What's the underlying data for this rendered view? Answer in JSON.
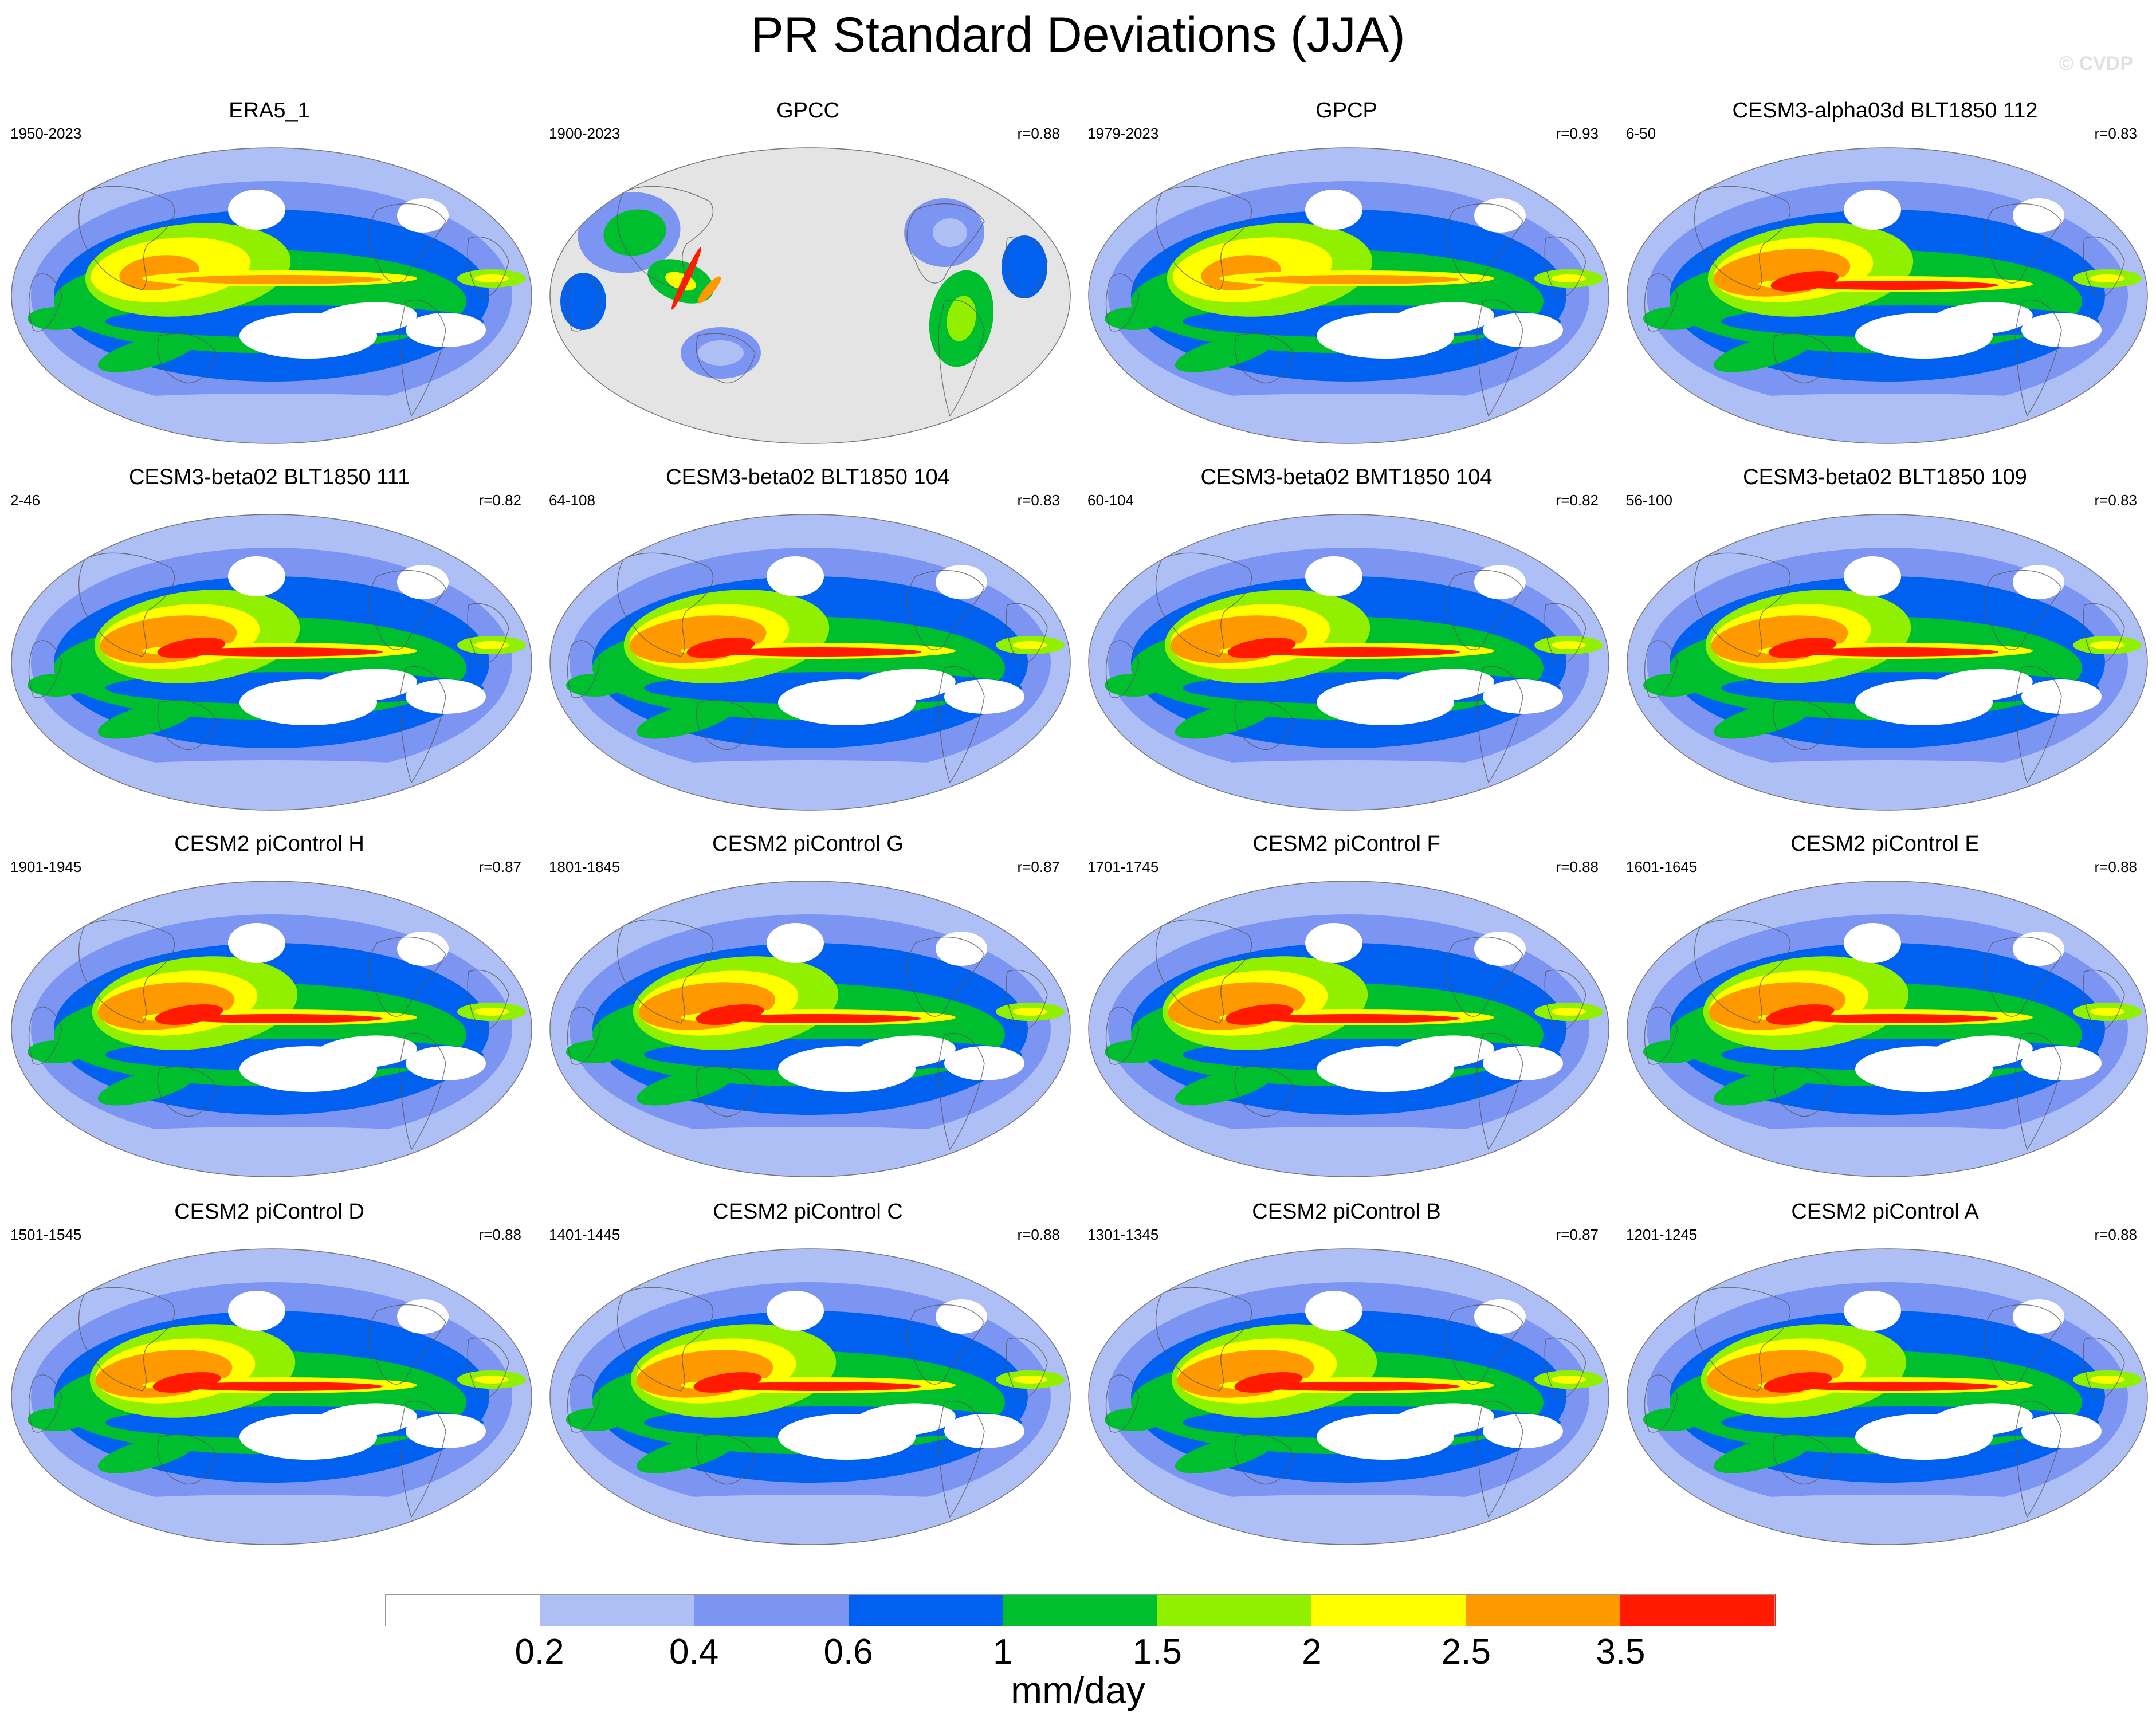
{
  "title": "PR Standard Deviations (JJA)",
  "watermark": "© CVDP",
  "panels": [
    {
      "name": "ERA5_1",
      "years": "1950-2023",
      "corr": "",
      "style": "obs"
    },
    {
      "name": "GPCC",
      "years": "1900-2023",
      "corr": "r=0.88",
      "style": "land"
    },
    {
      "name": "GPCP",
      "years": "1979-2023",
      "corr": "r=0.93",
      "style": "obs"
    },
    {
      "name": "CESM3-alpha03d BLT1850 112",
      "years": "6-50",
      "corr": "r=0.83",
      "style": "model"
    },
    {
      "name": "CESM3-beta02 BLT1850 111",
      "years": "2-46",
      "corr": "r=0.82",
      "style": "model"
    },
    {
      "name": "CESM3-beta02 BLT1850 104",
      "years": "64-108",
      "corr": "r=0.83",
      "style": "model"
    },
    {
      "name": "CESM3-beta02 BMT1850 104",
      "years": "60-104",
      "corr": "r=0.82",
      "style": "model"
    },
    {
      "name": "CESM3-beta02 BLT1850 109",
      "years": "56-100",
      "corr": "r=0.83",
      "style": "model"
    },
    {
      "name": "CESM2 piControl H",
      "years": "1901-1945",
      "corr": "r=0.87",
      "style": "model"
    },
    {
      "name": "CESM2 piControl G",
      "years": "1801-1845",
      "corr": "r=0.87",
      "style": "model"
    },
    {
      "name": "CESM2 piControl F",
      "years": "1701-1745",
      "corr": "r=0.88",
      "style": "model"
    },
    {
      "name": "CESM2 piControl E",
      "years": "1601-1645",
      "corr": "r=0.88",
      "style": "model"
    },
    {
      "name": "CESM2 piControl D",
      "years": "1501-1545",
      "corr": "r=0.88",
      "style": "model"
    },
    {
      "name": "CESM2 piControl C",
      "years": "1401-1445",
      "corr": "r=0.88",
      "style": "model"
    },
    {
      "name": "CESM2 piControl B",
      "years": "1301-1345",
      "corr": "r=0.87",
      "style": "model"
    },
    {
      "name": "CESM2 piControl A",
      "years": "1201-1245",
      "corr": "r=0.88",
      "style": "model"
    }
  ],
  "colorbar": {
    "colors": [
      "#ffffff",
      "#aebff5",
      "#7d95f2",
      "#0060f0",
      "#00bf2e",
      "#90f000",
      "#ffff00",
      "#ff9900",
      "#ff1a00"
    ],
    "ticks": [
      "0.2",
      "0.4",
      "0.6",
      "1",
      "1.5",
      "2",
      "2.5",
      "3.5"
    ],
    "units": "mm/day"
  },
  "colors": {
    "missing": "#e4e4e4",
    "coast": "#555555"
  }
}
